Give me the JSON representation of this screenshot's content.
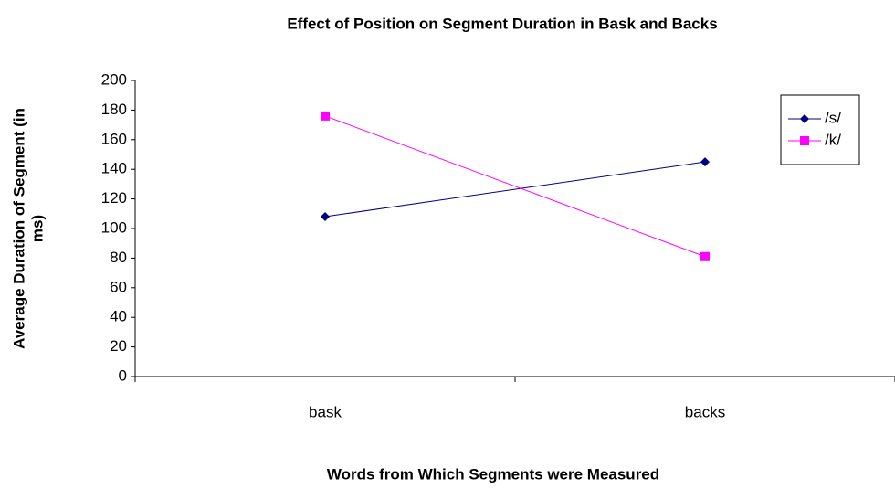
{
  "chart_data": {
    "type": "line",
    "title": "Effect of Position on Segment Duration in Bask and Backs",
    "xlabel": "Words from Which Segments were Measured",
    "ylabel": [
      "Average Duration of Segment (in",
      "ms)"
    ],
    "categories": [
      "bask",
      "backs"
    ],
    "series": [
      {
        "name": "/s/",
        "color": "#000080",
        "marker": "diamond",
        "values": [
          108,
          145
        ]
      },
      {
        "name": "/k/",
        "color": "#ff00ff",
        "marker": "square",
        "values": [
          176,
          81
        ]
      }
    ],
    "ylim": [
      0,
      200
    ],
    "yticks": [
      0,
      20,
      40,
      60,
      80,
      100,
      120,
      140,
      160,
      180,
      200
    ],
    "grid": false,
    "legend": "upper right"
  }
}
